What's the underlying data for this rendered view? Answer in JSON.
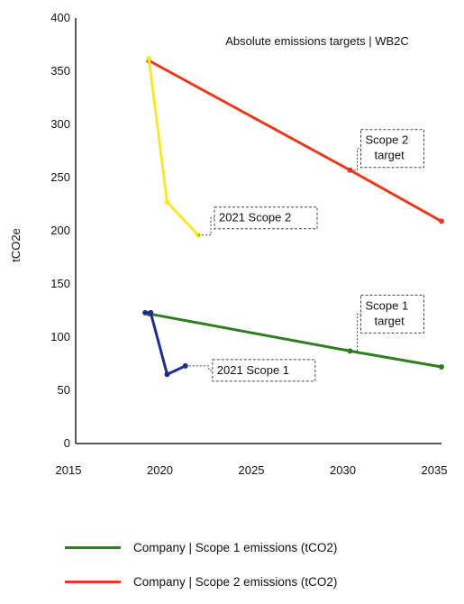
{
  "chart_data": {
    "type": "line",
    "title": "Absolute emissions targets | WB2C",
    "xlabel": "",
    "ylabel": "tCO2e",
    "xlim": [
      2015,
      2035
    ],
    "ylim": [
      0,
      400
    ],
    "x_ticks": [
      "2015",
      "2020",
      "2025",
      "2030",
      "2035"
    ],
    "y_ticks": [
      "0",
      "50",
      "100",
      "150",
      "200",
      "250",
      "300",
      "350",
      "400"
    ],
    "series": [
      {
        "name": "Company | Scope 1 emissions (tCO2)",
        "color": "#2e7d1f",
        "points": [
          [
            2019,
            122
          ],
          [
            2030,
            87
          ],
          [
            2035,
            72
          ]
        ]
      },
      {
        "name": "Company | Scope 2 emissions (tCO2)",
        "color": "#e53b1f",
        "points": [
          [
            2019,
            360
          ],
          [
            2030,
            257
          ],
          [
            2035,
            209
          ]
        ]
      },
      {
        "name": "",
        "color": "#f2ea2a",
        "points": [
          [
            2019,
            362
          ],
          [
            2020,
            227
          ],
          [
            2021.7,
            196
          ]
        ]
      },
      {
        "name": "",
        "color": "#1f2d8a",
        "points": [
          [
            2018.8,
            123
          ],
          [
            2019.1,
            123
          ],
          [
            2020,
            65
          ],
          [
            2021,
            73
          ]
        ]
      }
    ],
    "annotations": [
      {
        "lines": [
          "Scope 2",
          "target"
        ],
        "at": [
          2030,
          257
        ]
      },
      {
        "lines": [
          "2021 Scope 2"
        ],
        "at": [
          2021.7,
          196
        ]
      },
      {
        "lines": [
          "Scope 1",
          "target"
        ],
        "at": [
          2030,
          87
        ]
      },
      {
        "lines": [
          "2021 Scope 1"
        ],
        "at": [
          2021,
          73
        ]
      }
    ]
  },
  "legend": {
    "items": [
      {
        "label": "Company | Scope 1 emissions (tCO2)",
        "color": "#2e7d1f"
      },
      {
        "label": "Company | Scope 2 emissions (tCO2)",
        "color": "#e53b1f"
      }
    ]
  }
}
